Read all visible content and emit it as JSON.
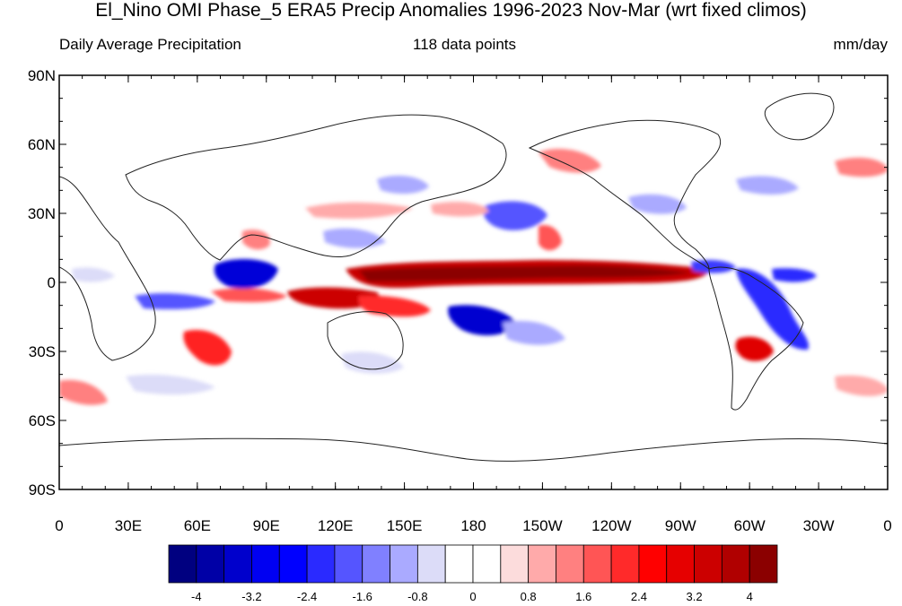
{
  "title": "El_Nino OMI Phase_5 ERA5 Precip Anomalies 1996-2023 Nov-Mar (wrt fixed climos)",
  "left_subtitle": "Daily Average Precipitation",
  "center_subtitle": "118 data points",
  "right_subtitle": "mm/day",
  "map": {
    "lat_labels": [
      "90N",
      "60N",
      "30N",
      "0",
      "30S",
      "60S",
      "90S"
    ],
    "lon_labels": [
      "0",
      "30E",
      "60E",
      "90E",
      "120E",
      "150E",
      "180",
      "150W",
      "120W",
      "90W",
      "60W",
      "30W",
      "0"
    ]
  },
  "colorbar": {
    "colors": [
      "#000080",
      "#0000a6",
      "#0000cc",
      "#0000f2",
      "#0000ff",
      "#2a2aff",
      "#5555ff",
      "#8080ff",
      "#aaaaff",
      "#dcdcf8",
      "#ffffff",
      "#ffffff",
      "#fcdcdc",
      "#ffaaaa",
      "#ff8080",
      "#ff5555",
      "#ff2a2a",
      "#ff0000",
      "#e60000",
      "#cc0000",
      "#b00000",
      "#8b0000"
    ],
    "labels": [
      "-4",
      "-3.2",
      "-2.4",
      "-1.6",
      "-0.8",
      "0",
      "0.8",
      "1.6",
      "2.4",
      "3.2",
      "4"
    ]
  }
}
